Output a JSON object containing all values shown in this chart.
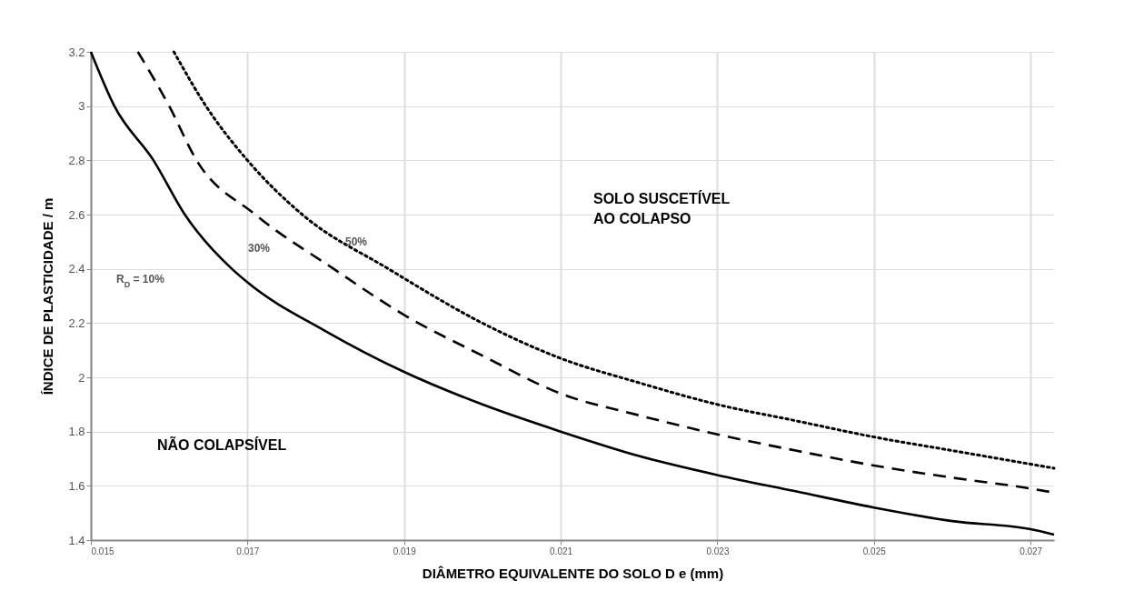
{
  "chart_data": {
    "type": "line",
    "xlabel": "DIÂMETRO EQUIVALENTE DO SOLO  D e (mm)",
    "ylabel": "ÍNDICE DE PLASTICIDADE  / m",
    "xlim": [
      0.015,
      0.0273
    ],
    "xticks": [
      0.015,
      0.017,
      0.019,
      0.021,
      0.023,
      0.025,
      0.027
    ],
    "ylim": [
      1.4,
      3.2
    ],
    "yticks": [
      1.4,
      1.6,
      1.8,
      2,
      2.2,
      2.4,
      2.6,
      2.8,
      3,
      3.2
    ],
    "grid": true,
    "series": [
      {
        "color": "#000000",
        "line_style": "solid",
        "x": [
          0.015,
          0.0153,
          0.0158,
          0.0162,
          0.0168,
          0.017,
          0.018,
          0.019,
          0.02,
          0.021,
          0.022,
          0.023,
          0.024,
          0.025,
          0.026,
          0.027,
          0.0273
        ],
        "values": [
          3.2,
          3.0,
          2.8,
          2.6,
          2.4,
          2.35,
          2.17,
          2.02,
          1.9,
          1.8,
          1.71,
          1.64,
          1.58,
          1.52,
          1.47,
          1.44,
          1.42
        ]
      },
      {
        "color": "#000000",
        "line_style": "dashed",
        "x": [
          0.0156,
          0.016,
          0.01635,
          0.0171,
          0.0181,
          0.019,
          0.02,
          0.021,
          0.022,
          0.023,
          0.024,
          0.025,
          0.026,
          0.027,
          0.0273
        ],
        "values": [
          3.2,
          3.0,
          2.8,
          2.6,
          2.4,
          2.23,
          2.08,
          1.94,
          1.86,
          1.79,
          1.73,
          1.675,
          1.63,
          1.59,
          1.575
        ]
      },
      {
        "color": "#000000",
        "line_style": "dotted",
        "x": [
          0.01606,
          0.01647,
          0.017,
          0.0177,
          0.0188,
          0.02,
          0.021,
          0.022,
          0.023,
          0.024,
          0.025,
          0.026,
          0.027,
          0.0273
        ],
        "values": [
          3.2,
          3.0,
          2.8,
          2.6,
          2.4,
          2.2,
          2.07,
          1.98,
          1.9,
          1.84,
          1.78,
          1.73,
          1.68,
          1.665
        ]
      }
    ],
    "annotations": [
      "R$_{D}$ = 10%",
      "30%",
      "50%",
      "SOLO SUSCETÍVEL\nAO COLAPSO",
      "NÃO COLAPSÍVEL"
    ]
  }
}
